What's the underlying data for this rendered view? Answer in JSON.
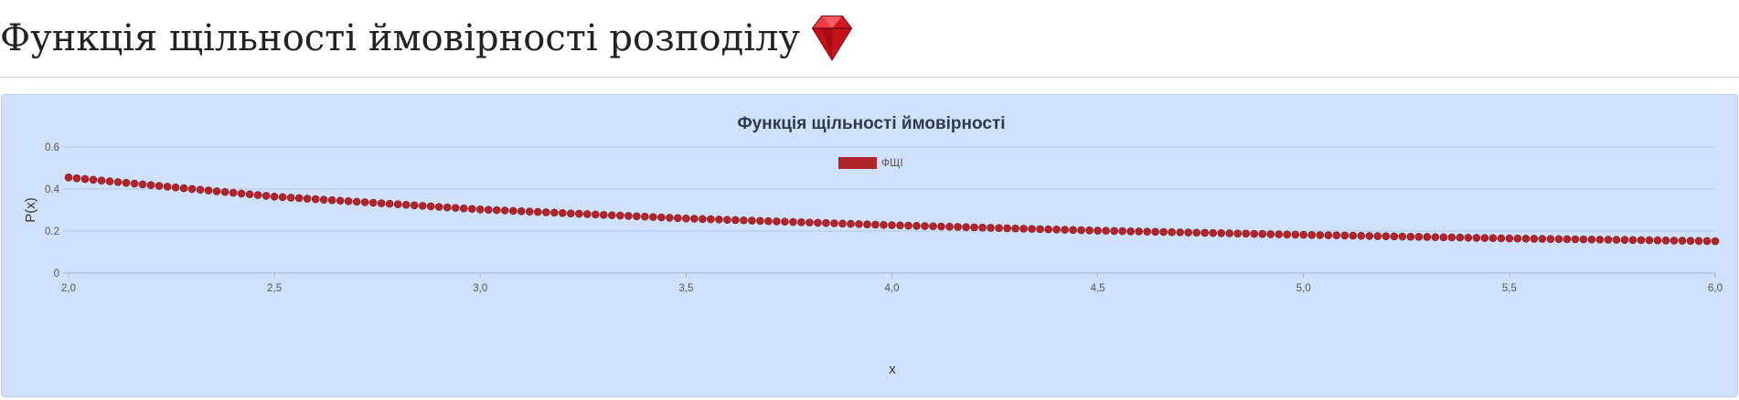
{
  "page": {
    "title": "Функція щільності ймовірності розподілу",
    "icon": "ruby-gem-icon"
  },
  "colors": {
    "panel_bg": "#cfe1fc",
    "series": "#b0252b",
    "grid": "#b5c6e0"
  },
  "chart_data": {
    "type": "scatter",
    "title": "Функція щільності ймовірності",
    "xlabel": "x",
    "ylabel": "P(x)",
    "xlim": [
      2.0,
      6.0
    ],
    "ylim": [
      0,
      0.6
    ],
    "xticks": [
      "2,0",
      "2,5",
      "3,0",
      "3,5",
      "4,0",
      "4,5",
      "5,0",
      "5,5",
      "6,0"
    ],
    "yticks": [
      "0",
      "0.2",
      "0.4",
      "0.6"
    ],
    "grid": true,
    "legend_position": "top-center",
    "series": [
      {
        "name": "ФЩІ",
        "color": "#b0252b",
        "x_start": 2.0,
        "x_end": 6.0,
        "x_step": 0.02,
        "sample_points": [
          {
            "x": 2.0,
            "y": 0.455
          },
          {
            "x": 2.5,
            "y": 0.364
          },
          {
            "x": 3.0,
            "y": 0.303
          },
          {
            "x": 3.5,
            "y": 0.26
          },
          {
            "x": 4.0,
            "y": 0.228
          },
          {
            "x": 4.5,
            "y": 0.202
          },
          {
            "x": 5.0,
            "y": 0.182
          },
          {
            "x": 5.5,
            "y": 0.165
          },
          {
            "x": 6.0,
            "y": 0.152
          }
        ]
      }
    ]
  }
}
